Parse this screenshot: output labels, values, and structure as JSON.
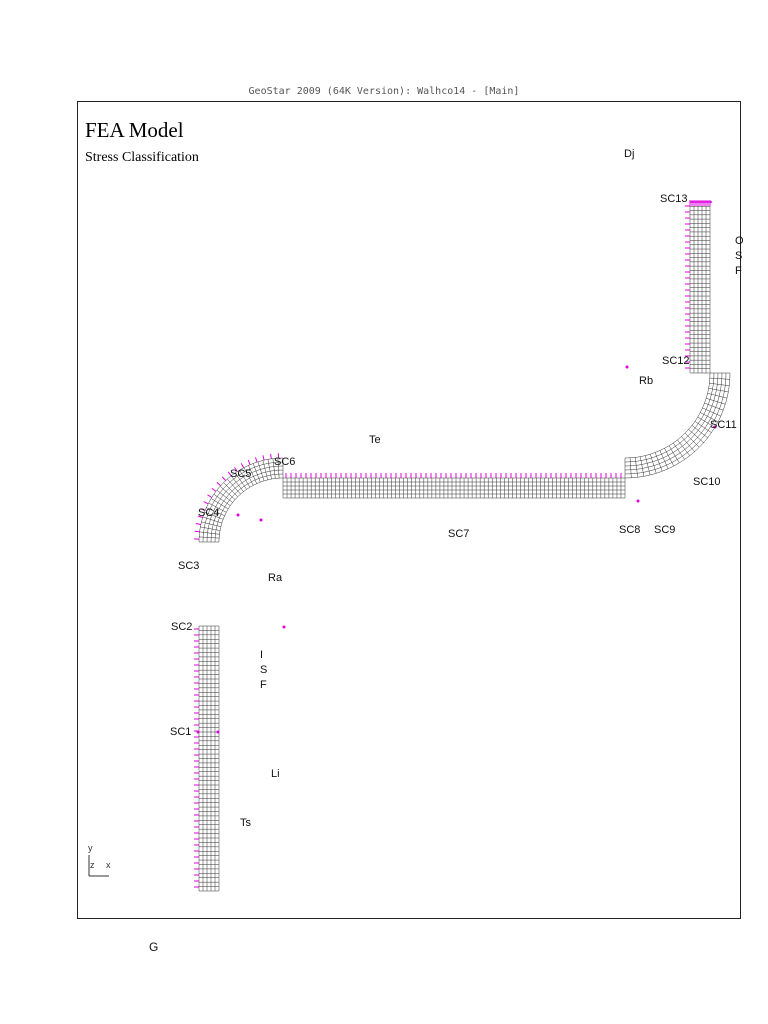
{
  "window": {
    "title": "GeoStar 2009 (64K Version): Walhco14 - [Main]"
  },
  "model": {
    "title": "FEA Model",
    "subtitle": "Stress Classification"
  },
  "sections": [
    "SC1",
    "SC2",
    "SC3",
    "SC4",
    "SC5",
    "SC6",
    "SC7",
    "SC8",
    "SC9",
    "SC10",
    "SC11",
    "SC12",
    "SC13"
  ],
  "annotations": {
    "dj": "Dj",
    "te": "Te",
    "rb": "Rb",
    "ra": "Ra",
    "li": "Li",
    "ts": "Ts",
    "osf": [
      "O",
      "S",
      "F"
    ],
    "isf": [
      "I",
      "S",
      "F"
    ]
  },
  "axis": {
    "y": "y",
    "z": "z",
    "x": "x"
  },
  "bottom_label": "G",
  "colors": {
    "mesh": "#333333",
    "boundary": "#e000e0",
    "frame": "#222222"
  }
}
